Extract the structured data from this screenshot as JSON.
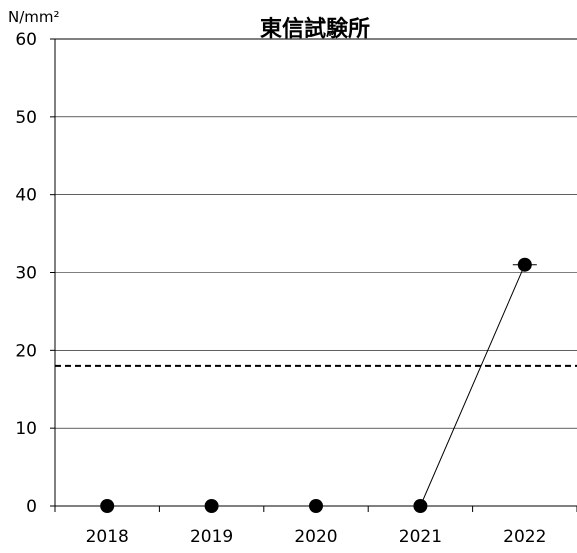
{
  "chart_data": {
    "type": "line",
    "title": "東信試験所",
    "unit": "N/mm²",
    "categories": [
      "2018",
      "2019",
      "2020",
      "2021",
      "2022"
    ],
    "series": [
      {
        "values": [
          0,
          0,
          0,
          0,
          31
        ],
        "color": "#000000"
      }
    ],
    "reference_line": {
      "value": 18,
      "style": "dashed",
      "color": "#000000"
    },
    "ylim": [
      0,
      60
    ],
    "yticks": [
      0,
      10,
      20,
      30,
      40,
      50,
      60
    ],
    "grid": true
  }
}
